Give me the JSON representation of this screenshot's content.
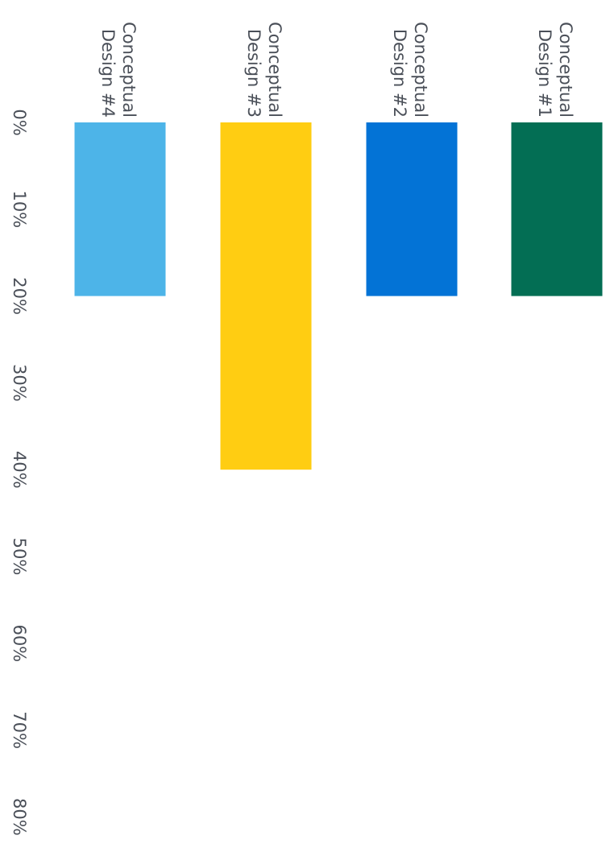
{
  "chart_data": {
    "type": "bar",
    "orientation": "horizontal",
    "categories": [
      "Conceptual Design #1",
      "Conceptual Design #2",
      "Conceptual Design #3",
      "Conceptual Design #4"
    ],
    "values": [
      20,
      20,
      40,
      20
    ],
    "colors": [
      "#036e54",
      "#0373d6",
      "#ffcd12",
      "#4db4e8"
    ],
    "axis": {
      "ticks": [
        "0%",
        "10%",
        "20%",
        "30%",
        "40%",
        "50%",
        "60%",
        "70%",
        "80%"
      ],
      "tick_values": [
        0,
        10,
        20,
        30,
        40,
        50,
        60,
        70,
        80
      ],
      "xlim": [
        0,
        80
      ]
    },
    "title": "",
    "xlabel": "",
    "ylabel": "",
    "grid": false,
    "legend": "none"
  }
}
